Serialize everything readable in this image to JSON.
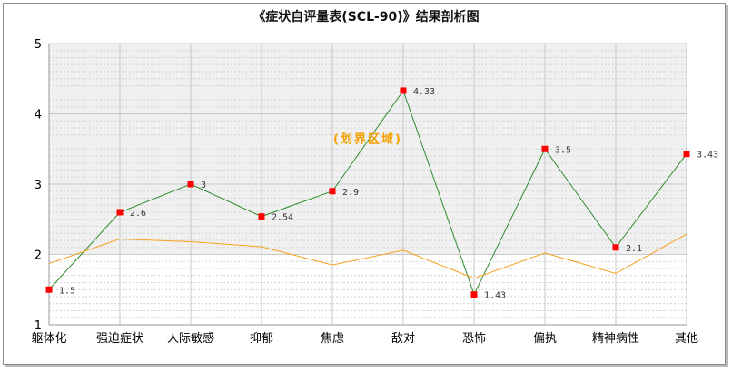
{
  "chart_data": {
    "type": "line",
    "title": "《症状自评量表(SCL-90)》结果剖析图",
    "categories": [
      "躯体化",
      "强迫症状",
      "人际敏感",
      "抑郁",
      "焦虑",
      "敌对",
      "恐怖",
      "偏执",
      "精神病性",
      "其他"
    ],
    "series": [
      {
        "values": [
          1.5,
          2.6,
          3,
          2.54,
          2.9,
          4.33,
          1.43,
          3.5,
          2.1,
          3.43
        ],
        "color": "#2e8b2e",
        "marker_color": "#ff0000",
        "data_labels": [
          "1.5",
          "2.6",
          "3",
          "2.54",
          "2.9",
          "4.33",
          "1.43",
          "3.5",
          "2.1",
          "3.43"
        ]
      },
      {
        "values": [
          1.87,
          2.22,
          2.18,
          2.11,
          1.85,
          2.06,
          1.66,
          2.02,
          1.73,
          2.29
        ],
        "color": "#f5a21c"
      }
    ],
    "band": {
      "label": "(划界区域)",
      "from": 2,
      "to": 5,
      "color": "#f0f0f0",
      "label_color": "#f5a000"
    },
    "ylim": [
      1,
      5
    ],
    "yticks": [
      "1",
      "2",
      "3",
      "4",
      "5"
    ],
    "grid": true,
    "xlabel": "",
    "ylabel": ""
  }
}
